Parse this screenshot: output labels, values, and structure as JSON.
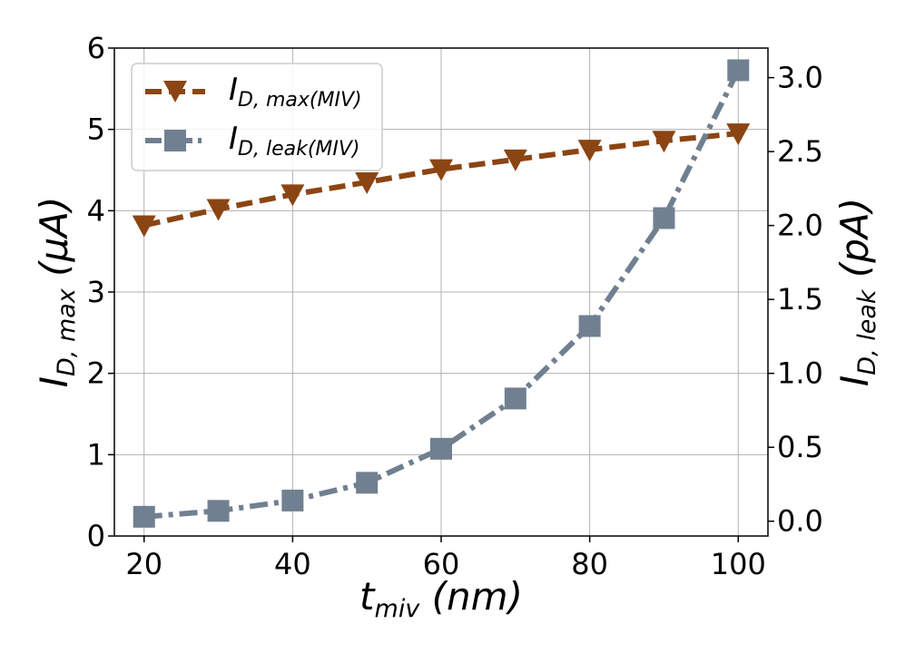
{
  "chart_data": {
    "type": "line",
    "x": [
      20,
      30,
      40,
      50,
      60,
      70,
      80,
      90,
      100
    ],
    "x_tick_labels": [
      "20",
      "40",
      "60",
      "80",
      "100"
    ],
    "x_ticks": [
      20,
      40,
      60,
      80,
      100
    ],
    "xlim": [
      16,
      104
    ],
    "xlabel": {
      "base": "t",
      "sub": "miv",
      "unit": " (nm)"
    },
    "left_axis": {
      "ylim": [
        0,
        6
      ],
      "ticks": [
        0,
        1,
        2,
        3,
        4,
        5,
        6
      ],
      "tick_labels": [
        "0",
        "1",
        "2",
        "3",
        "4",
        "5",
        "6"
      ],
      "label": {
        "base": "I",
        "sub": "D, max",
        "unit": " (μA)"
      }
    },
    "right_axis": {
      "ylim": [
        -0.1,
        3.2
      ],
      "ticks": [
        0.0,
        0.5,
        1.0,
        1.5,
        2.0,
        2.5,
        3.0
      ],
      "tick_labels": [
        "0.0",
        "0.5",
        "1.0",
        "1.5",
        "2.0",
        "2.5",
        "3.0"
      ],
      "label": {
        "base": "I",
        "sub": "D, leak",
        "unit": " (pA)"
      }
    },
    "grid": true,
    "legend_position": "top-left",
    "series": [
      {
        "name": "I_D,max(MIV)",
        "legend": {
          "base": "I",
          "sub": "D, max(MIV)"
        },
        "axis": "left",
        "marker": "triangle-down",
        "line_style": "dashed",
        "color": "#8B4513",
        "values": [
          3.82,
          4.02,
          4.2,
          4.35,
          4.51,
          4.63,
          4.75,
          4.86,
          4.95
        ]
      },
      {
        "name": "I_D,leak(MIV)",
        "legend": {
          "base": "I",
          "sub": "D, leak(MIV)"
        },
        "axis": "right",
        "marker": "square",
        "line_style": "dashdot",
        "color": "#708090",
        "values": [
          0.03,
          0.07,
          0.14,
          0.26,
          0.49,
          0.83,
          1.32,
          2.05,
          3.05
        ]
      }
    ]
  }
}
